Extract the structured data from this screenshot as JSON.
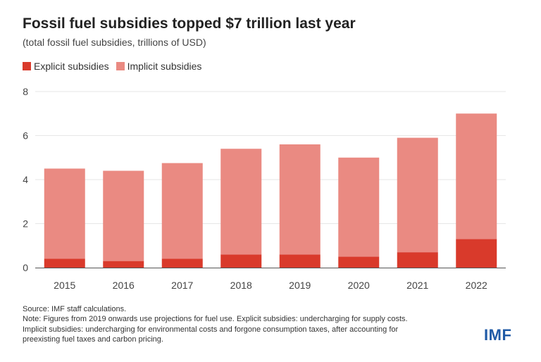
{
  "title": "Fossil fuel subsidies topped $7 trillion last year",
  "subtitle": "(total fossil fuel subsidies, trillions of USD)",
  "colors": {
    "explicit": "#d93a2b",
    "implicit": "#ea8a82",
    "grid": "#e6e6e6",
    "axis": "#555555",
    "logo": "#1f5aa6"
  },
  "chart_data": {
    "type": "bar",
    "stacked": true,
    "categories": [
      "2015",
      "2016",
      "2017",
      "2018",
      "2019",
      "2020",
      "2021",
      "2022"
    ],
    "series": [
      {
        "name": "Explicit subsidies",
        "values": [
          0.4,
          0.3,
          0.4,
          0.6,
          0.6,
          0.5,
          0.7,
          1.3
        ]
      },
      {
        "name": "Implicit subsidies",
        "values": [
          4.1,
          4.1,
          4.35,
          4.8,
          5.0,
          4.5,
          5.2,
          5.7
        ]
      }
    ],
    "ylim": [
      0,
      8
    ],
    "yticks": [
      "0",
      "2",
      "4",
      "6",
      "8"
    ],
    "grid": true,
    "legend": "top-left"
  },
  "notes": {
    "source": "Source: IMF staff calculations.",
    "note_line1": "Note: Figures from 2019 onwards use projections for fuel use. Explicit subsidies: undercharging for supply costs.",
    "note_line2": "Implicit subsidies: undercharging for environmental costs and forgone consumption taxes, after accounting for",
    "note_line3": "preexisting fuel taxes and carbon pricing."
  },
  "logo": "IMF"
}
